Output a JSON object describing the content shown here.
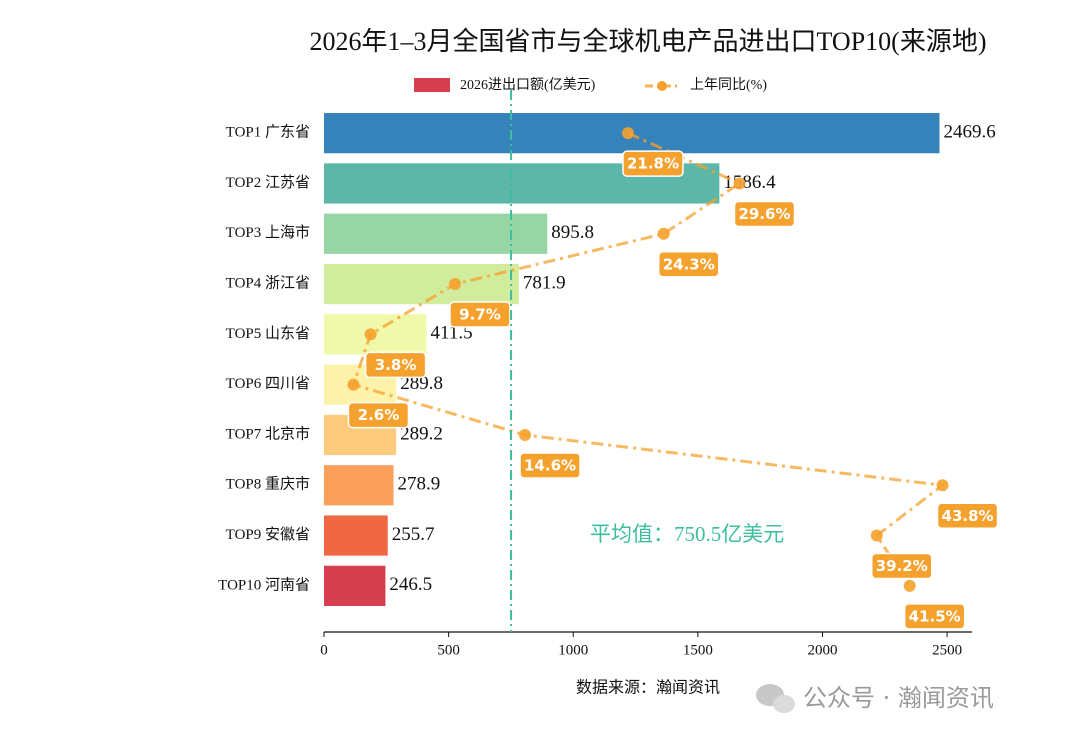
{
  "chart_data": {
    "type": "bar",
    "title": "2026年1–3月全国省市与全球机电产品进出口TOP10(来源地)",
    "categories": [
      "TOP1 广东省",
      "TOP2 江苏省",
      "TOP3 上海市",
      "TOP4 浙江省",
      "TOP5 山东省",
      "TOP6 四川省",
      "TOP7 北京市",
      "TOP8 重庆市",
      "TOP9 安徽省",
      "TOP10 河南省"
    ],
    "series": [
      {
        "name": "2026进出口额(亿美元)",
        "type": "barh",
        "color": "#d53e4f",
        "colors": [
          "#3682ba",
          "#5cb7a8",
          "#98d5a4",
          "#d0ec9c",
          "#f0f8aa",
          "#fdf2a9",
          "#fdcb7b",
          "#fba05b",
          "#f06744",
          "#d53e4f"
        ],
        "values": [
          2469.6,
          1586.4,
          895.8,
          781.9,
          411.5,
          289.8,
          289.2,
          278.9,
          255.7,
          246.5
        ]
      },
      {
        "name": "上年同比(%)",
        "type": "line",
        "axis": "x2",
        "color": "#f5a12e",
        "values": [
          21.8,
          29.6,
          24.3,
          9.7,
          3.8,
          2.6,
          14.6,
          43.8,
          39.2,
          41.5
        ],
        "value_labels": [
          "21.8%",
          "29.6%",
          "24.3%",
          "9.7%",
          "3.8%",
          "2.6%",
          "14.6%",
          "43.8%",
          "39.2%",
          "41.5%"
        ]
      }
    ],
    "xlim": [
      0,
      2600
    ],
    "xticks": [
      0,
      500,
      1000,
      1500,
      2000,
      2500
    ],
    "x2lim": [
      0.54,
      45.86
    ],
    "average": {
      "value": 750.5,
      "label": "平均值：750.5亿美元",
      "color": "#3cbf9f"
    },
    "legend": "upper center",
    "source": "数据来源：瀚闻资讯",
    "watermark": "公众号 · 瀚闻资讯"
  }
}
